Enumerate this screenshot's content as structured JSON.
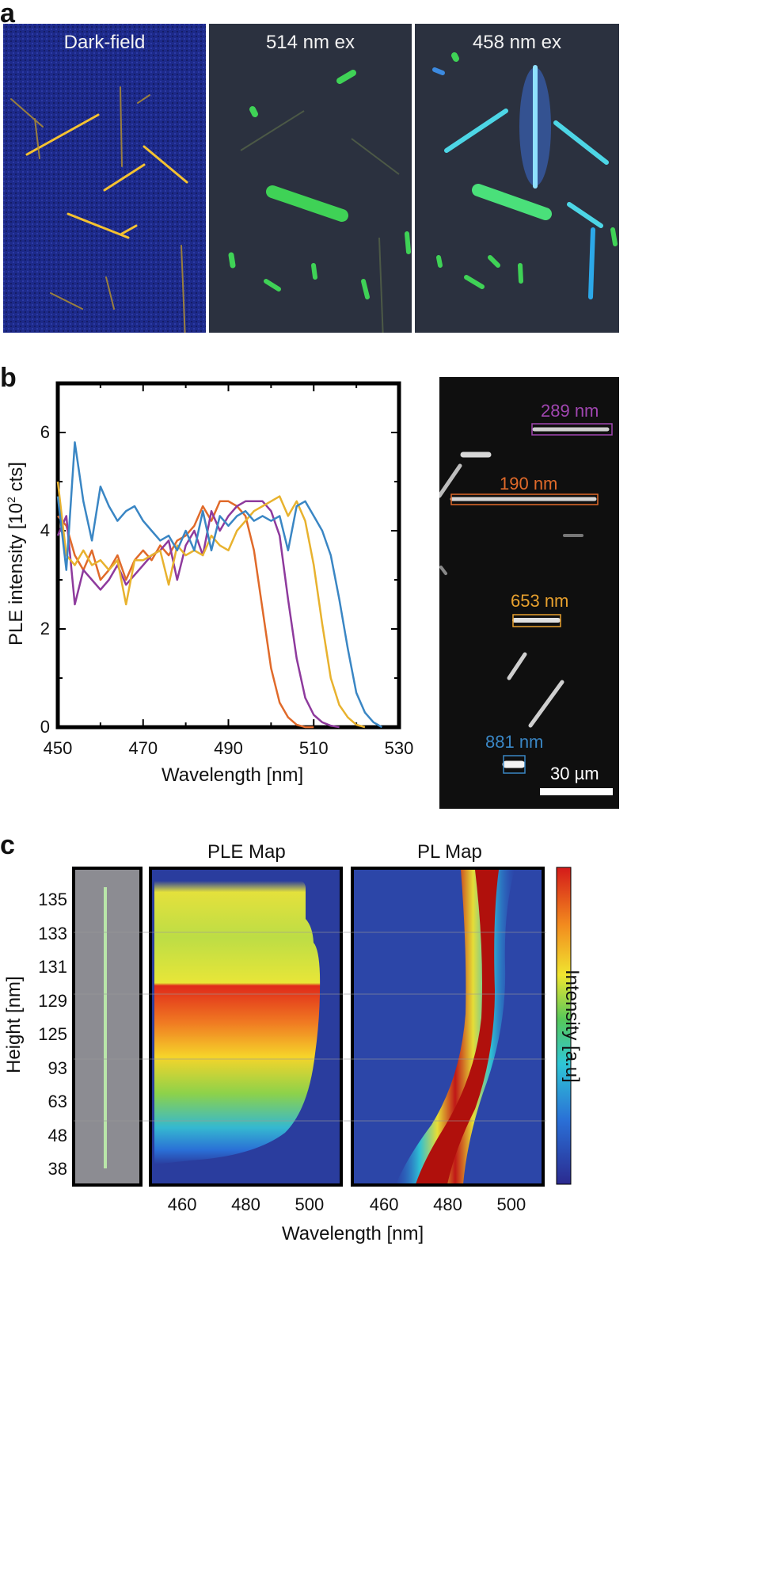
{
  "panel_a": {
    "label": "a",
    "titles": [
      "Dark-field",
      "514 nm ex",
      "458 nm ex"
    ]
  },
  "panel_b": {
    "label": "b",
    "chart_data": {
      "type": "line",
      "title": "",
      "xlabel": "Wavelength [nm]",
      "ylabel": "PLE intensity [10^2 cts]",
      "ylabel_main": "PLE intensity [10",
      "ylabel_sup": "2",
      "ylabel_tail": " cts]",
      "xlim": [
        450,
        530
      ],
      "ylim": [
        0,
        7
      ],
      "xticks": [
        "450",
        "470",
        "490",
        "510",
        "530"
      ],
      "yticks": [
        "0",
        "2",
        "4",
        "6"
      ],
      "series": [
        {
          "name": "190 nm",
          "color": "#e06a2a",
          "x": [
            450,
            452,
            454,
            456,
            458,
            460,
            462,
            464,
            466,
            468,
            470,
            472,
            474,
            476,
            478,
            480,
            482,
            484,
            486,
            488,
            490,
            492,
            494,
            496,
            498,
            500,
            502,
            504,
            506,
            508,
            510
          ],
          "y": [
            4.3,
            4.1,
            3.5,
            3.2,
            3.6,
            3.0,
            3.2,
            3.5,
            3.0,
            3.4,
            3.6,
            3.4,
            3.7,
            3.5,
            3.8,
            3.9,
            4.1,
            4.5,
            4.2,
            4.6,
            4.6,
            4.5,
            4.3,
            3.6,
            2.4,
            1.2,
            0.5,
            0.2,
            0.05,
            0.0,
            0.0
          ]
        },
        {
          "name": "289 nm",
          "color": "#8e3a9d",
          "x": [
            450,
            452,
            454,
            456,
            458,
            460,
            462,
            464,
            466,
            468,
            470,
            472,
            474,
            476,
            478,
            480,
            482,
            484,
            486,
            488,
            490,
            492,
            494,
            496,
            498,
            500,
            502,
            504,
            506,
            508,
            510,
            512,
            514,
            516
          ],
          "y": [
            3.9,
            4.3,
            2.5,
            3.2,
            3.0,
            2.8,
            3.0,
            3.3,
            2.9,
            3.1,
            3.3,
            3.5,
            3.6,
            3.8,
            3.0,
            3.7,
            4.0,
            3.5,
            4.4,
            4.0,
            4.3,
            4.5,
            4.6,
            4.6,
            4.6,
            4.4,
            3.9,
            2.6,
            1.4,
            0.6,
            0.25,
            0.1,
            0.03,
            0.0
          ]
        },
        {
          "name": "653 nm",
          "color": "#e8b22e",
          "x": [
            450,
            452,
            454,
            456,
            458,
            460,
            462,
            464,
            466,
            468,
            470,
            472,
            474,
            476,
            478,
            480,
            482,
            484,
            486,
            488,
            490,
            492,
            494,
            496,
            498,
            500,
            502,
            504,
            506,
            508,
            510,
            512,
            514,
            516,
            518,
            520,
            522
          ],
          "y": [
            5.0,
            3.5,
            3.3,
            3.6,
            3.3,
            3.4,
            3.2,
            3.4,
            2.5,
            3.4,
            3.4,
            3.5,
            3.6,
            2.9,
            3.7,
            3.5,
            3.6,
            3.5,
            3.9,
            3.7,
            3.6,
            4.0,
            4.2,
            4.4,
            4.5,
            4.6,
            4.7,
            4.3,
            4.6,
            4.2,
            3.3,
            2.1,
            1.0,
            0.45,
            0.2,
            0.05,
            0.0
          ]
        },
        {
          "name": "881 nm",
          "color": "#3a86c4",
          "x": [
            450,
            452,
            454,
            456,
            458,
            460,
            462,
            464,
            466,
            468,
            470,
            472,
            474,
            476,
            478,
            480,
            482,
            484,
            486,
            488,
            490,
            492,
            494,
            496,
            498,
            500,
            502,
            504,
            506,
            508,
            510,
            512,
            514,
            516,
            518,
            520,
            522,
            524,
            526
          ],
          "y": [
            4.7,
            3.2,
            5.8,
            4.6,
            3.8,
            4.9,
            4.5,
            4.2,
            4.4,
            4.5,
            4.2,
            4.0,
            3.8,
            3.9,
            3.6,
            4.0,
            3.6,
            4.4,
            3.6,
            4.3,
            4.1,
            4.3,
            4.4,
            4.2,
            4.3,
            4.2,
            4.3,
            3.6,
            4.5,
            4.6,
            4.3,
            4.0,
            3.5,
            2.6,
            1.6,
            0.7,
            0.3,
            0.1,
            0.0
          ]
        }
      ]
    },
    "micrograph": {
      "labels": [
        {
          "text": "289 nm",
          "color": "#a046b0"
        },
        {
          "text": "190 nm",
          "color": "#e06a2a"
        },
        {
          "text": "653 nm",
          "color": "#e8a12e"
        },
        {
          "text": "881 nm",
          "color": "#3a86c4"
        }
      ],
      "scalebar": "30 µm"
    }
  },
  "panel_c": {
    "label": "c",
    "titles": {
      "ple": "PLE Map",
      "pl": "PL Map"
    },
    "chart_data": {
      "type": "heatmap",
      "ylabel": "Height [nm]",
      "xlabel": "Wavelength [nm]",
      "colorbar_label": "Intensity [a.u]",
      "y_categories": [
        "135",
        "133",
        "131",
        "129",
        "125",
        "93",
        "63",
        "48",
        "38"
      ],
      "ple_xticks": [
        "460",
        "480",
        "500"
      ],
      "pl_xticks": [
        "460",
        "480",
        "500"
      ],
      "ple_xlim": [
        450,
        510
      ],
      "pl_xlim": [
        450,
        510
      ]
    }
  }
}
